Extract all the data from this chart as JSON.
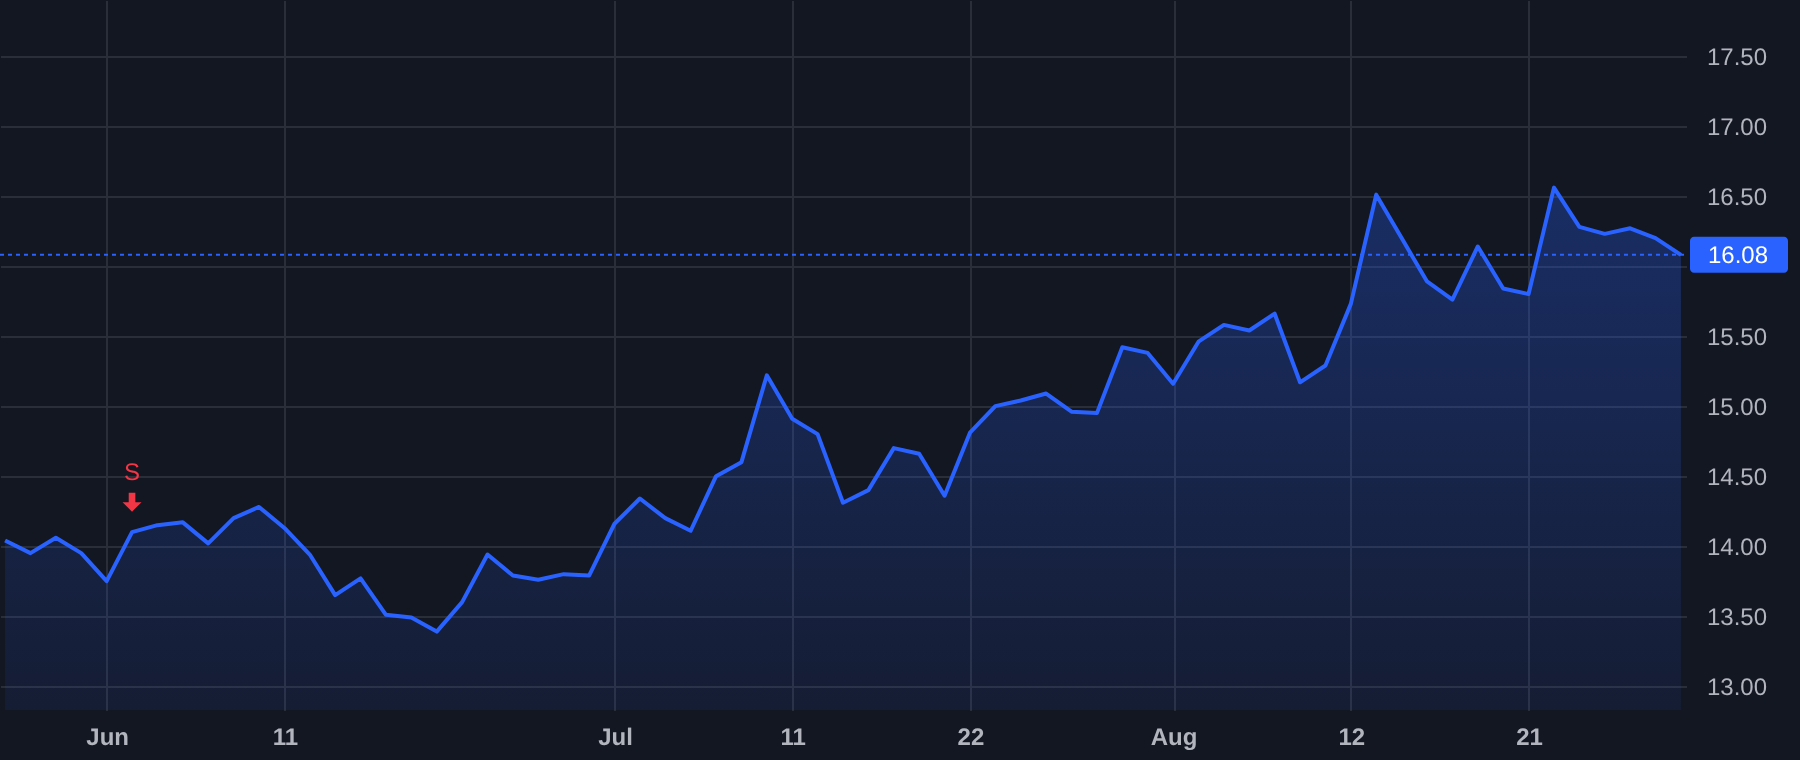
{
  "chart_data": {
    "type": "area",
    "categories": [
      null,
      null,
      null,
      null,
      "Jun",
      null,
      null,
      null,
      null,
      null,
      null,
      "11",
      null,
      null,
      null,
      null,
      null,
      null,
      null,
      null,
      null,
      null,
      null,
      null,
      "Jul",
      null,
      null,
      null,
      null,
      null,
      null,
      "11",
      null,
      null,
      null,
      null,
      null,
      null,
      "22",
      null,
      null,
      null,
      null,
      null,
      null,
      null,
      "Aug",
      null,
      null,
      null,
      null,
      null,
      null,
      "12",
      null,
      null,
      null,
      null,
      null,
      null,
      "21",
      null,
      null,
      null,
      null,
      null,
      null
    ],
    "series": [
      {
        "color": "#2962ff",
        "values": [
          14.04,
          13.95,
          14.06,
          13.95,
          13.75,
          14.1,
          14.15,
          14.17,
          14.02,
          14.2,
          14.28,
          14.13,
          13.94,
          13.65,
          13.77,
          13.51,
          13.49,
          13.39,
          13.6,
          13.94,
          13.79,
          13.76,
          13.8,
          13.79,
          14.16,
          14.34,
          14.2,
          14.11,
          14.5,
          14.6,
          15.22,
          14.91,
          14.8,
          14.31,
          14.4,
          14.7,
          14.66,
          14.36,
          14.81,
          15.0,
          15.04,
          15.09,
          14.96,
          14.95,
          15.42,
          15.38,
          15.16,
          15.46,
          15.58,
          15.54,
          15.66,
          15.17,
          15.29,
          15.73,
          16.51,
          16.2,
          15.89,
          15.76,
          16.14,
          15.84,
          15.8,
          16.56,
          16.28,
          16.23,
          16.27,
          16.2,
          16.08
        ]
      }
    ],
    "ylim": [
      12.83,
      17.9
    ],
    "yticks": [
      {
        "value": 13,
        "label": "13.00"
      },
      {
        "value": 13.5,
        "label": "13.50"
      },
      {
        "value": 14,
        "label": "14.00"
      },
      {
        "value": 14.5,
        "label": "14.50"
      },
      {
        "value": 15,
        "label": "15.00"
      },
      {
        "value": 15.5,
        "label": "15.50"
      },
      {
        "value": 16,
        "label": null
      },
      {
        "value": 16.5,
        "label": "16.50"
      },
      {
        "value": 17,
        "label": "17.00"
      },
      {
        "value": 17.5,
        "label": "17.50"
      }
    ],
    "grid": true,
    "ref_lines": [
      {
        "axis": "y",
        "value": 16.08,
        "label": "16.08",
        "color": "#2962ff",
        "line_style": "dotted"
      }
    ],
    "annotations": [
      {
        "text": "S",
        "y": 14.1
      }
    ]
  }
}
